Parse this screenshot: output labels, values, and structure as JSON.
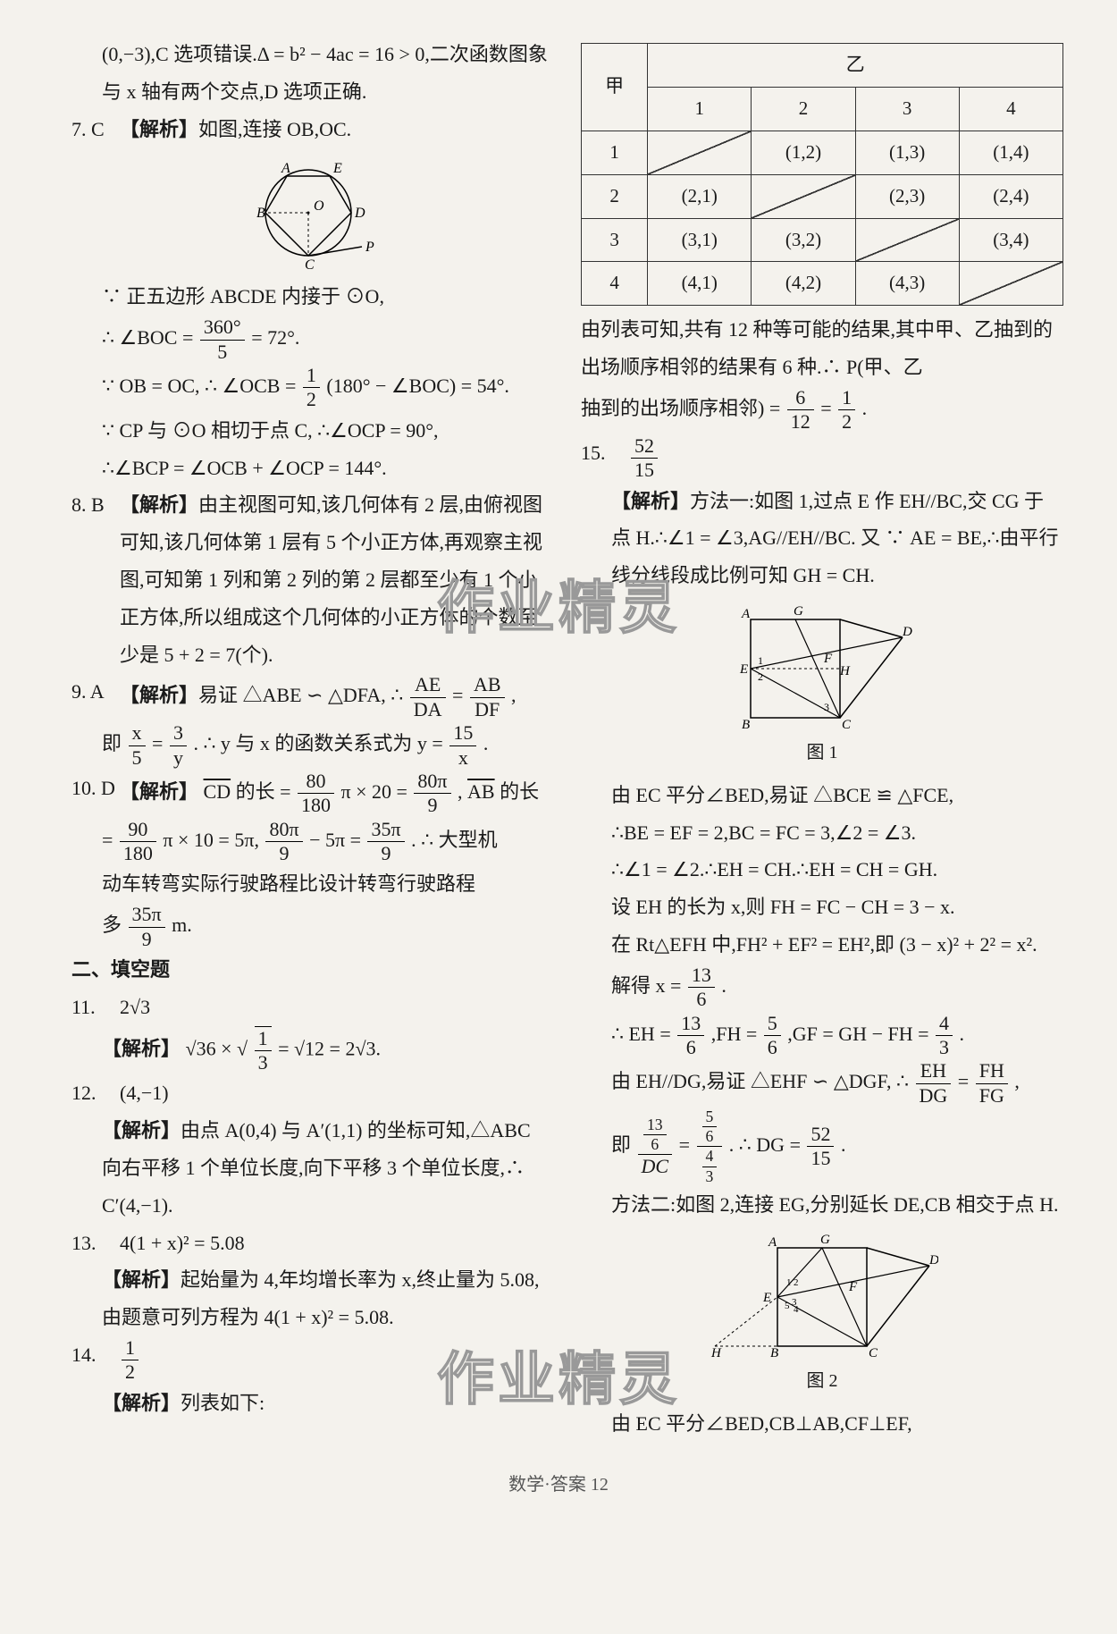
{
  "left": {
    "intro": "(0,−3),C 选项错误.Δ = b² − 4ac = 16 > 0,二次函数图象与 x 轴有两个交点,D 选项正确.",
    "q7_num": "7. C",
    "q7_tag": "【解析】",
    "q7_a": "如图,连接 OB,OC.",
    "q7_b": "∵ 正五边形 ABCDE 内接于 ⊙O,",
    "q7_c_pre": "∴ ∠BOC = ",
    "q7_c_frac_n": "360°",
    "q7_c_frac_d": "5",
    "q7_c_post": " = 72°.",
    "q7_d_pre": "∵ OB = OC, ∴ ∠OCB = ",
    "q7_d_frac_n": "1",
    "q7_d_frac_d": "2",
    "q7_d_post": "(180° − ∠BOC) = 54°.",
    "q7_e": "∵ CP 与 ⊙O 相切于点 C, ∴∠OCP = 90°,",
    "q7_f": "∴∠BCP = ∠OCB + ∠OCP = 144°.",
    "q8_num": "8. B",
    "q8_tag": "【解析】",
    "q8_body": "由主视图可知,该几何体有 2 层,由俯视图可知,该几何体第 1 层有 5 个小正方体,再观察主视图,可知第 1 列和第 2 列的第 2 层都至少有 1 个小正方体,所以组成这个几何体的小正方体的个数至少是 5 + 2 = 7(个).",
    "q9_num": "9. A",
    "q9_tag": "【解析】",
    "q9_a_pre": "易证 △ABE ∽ △DFA, ∴ ",
    "q9_a_f1n": "AE",
    "q9_a_f1d": "DA",
    "q9_a_eq": " = ",
    "q9_a_f2n": "AB",
    "q9_a_f2d": "DF",
    "q9_a_post": ",",
    "q9_b_pre": "即 ",
    "q9_b_f1n": "x",
    "q9_b_f1d": "5",
    "q9_b_eq1": " = ",
    "q9_b_f2n": "3",
    "q9_b_f2d": "y",
    "q9_b_post1": ". ∴ y 与 x 的函数关系式为 y = ",
    "q9_b_f3n": "15",
    "q9_b_f3d": "x",
    "q9_b_post2": ".",
    "q10_num": "10. D",
    "q10_tag": "【解析】",
    "q10_a_pre": "",
    "q10_cd": "CD",
    "q10_a1": " 的长 = ",
    "q10_f1n": "80",
    "q10_f1d": "180",
    "q10_a2": " π × 20 = ",
    "q10_f2n": "80π",
    "q10_f2d": "9",
    "q10_a3": " , ",
    "q10_ab": "AB",
    "q10_a4": " 的长",
    "q10_b1": " = ",
    "q10_f3n": "90",
    "q10_f3d": "180",
    "q10_b2": " π × 10 = 5π, ",
    "q10_f4n": "80π",
    "q10_f4d": "9",
    "q10_b3": " − 5π = ",
    "q10_f5n": "35π",
    "q10_f5d": "9",
    "q10_b4": ". ∴ 大型机",
    "q10_c1": "动车转弯实际行驶路程比设计转弯行驶路程",
    "q10_d_pre": "多 ",
    "q10_f6n": "35π",
    "q10_f6d": "9",
    "q10_d_post": " m.",
    "sec2": "二、填空题",
    "q11_num": "11.",
    "q11_ans": "2√3",
    "q11_tag": "【解析】",
    "q11_body_pre": "√36 × ",
    "q11_rad": "√",
    "q11_f1n": "1",
    "q11_f1d": "3",
    "q11_body_post": " = √12 = 2√3.",
    "q12_num": "12.",
    "q12_ans": "(4,−1)",
    "q12_tag": "【解析】",
    "q12_body": "由点 A(0,4) 与 A′(1,1) 的坐标可知,△ABC 向右平移 1 个单位长度,向下平移 3 个单位长度,∴ C′(4,−1).",
    "q13_num": "13.",
    "q13_ans": "4(1 + x)² = 5.08",
    "q13_tag": "【解析】",
    "q13_body": "起始量为 4,年均增长率为 x,终止量为 5.08,由题意可列方程为 4(1 + x)² = 5.08.",
    "q14_num": "14.",
    "q14_f_n": "1",
    "q14_f_d": "2",
    "q14_tag": "【解析】",
    "q14_body": "列表如下:"
  },
  "right": {
    "table": {
      "header_top": "乙",
      "header_side": "甲",
      "cols": [
        "1",
        "2",
        "3",
        "4"
      ],
      "rows": [
        "1",
        "2",
        "3",
        "4"
      ],
      "cells": [
        [
          "",
          "(1,2)",
          "(1,3)",
          "(1,4)"
        ],
        [
          "(2,1)",
          "",
          "(2,3)",
          "(2,4)"
        ],
        [
          "(3,1)",
          "(3,2)",
          "",
          "(3,4)"
        ],
        [
          "(4,1)",
          "(4,2)",
          "(4,3)",
          ""
        ]
      ]
    },
    "t_after1": "由列表可知,共有 12 种等可能的结果,其中甲、乙抽到的出场顺序相邻的结果有 6 种.∴ P(甲、乙",
    "t_after2_pre": "抽到的出场顺序相邻) = ",
    "t_f1n": "6",
    "t_f1d": "12",
    "t_eq": " = ",
    "t_f2n": "1",
    "t_f2d": "2",
    "t_post": ".",
    "q15_num": "15.",
    "q15_fn": "52",
    "q15_fd": "15",
    "q15_tag": "【解析】",
    "q15_a": "方法一:如图 1,过点 E 作 EH//BC,交 CG 于点 H.∴∠1 = ∠3,AG//EH//BC. 又 ∵ AE = BE,∴由平行线分线段成比例可知 GH = CH.",
    "fig1_cap": "图 1",
    "q15_b": "由 EC 平分∠BED,易证 △BCE ≌ △FCE,",
    "q15_c": "∴BE = EF = 2,BC = FC = 3,∠2 = ∠3.",
    "q15_d": "∴∠1 = ∠2.∴EH = CH.∴EH = CH = GH.",
    "q15_e": "设 EH 的长为 x,则 FH = FC − CH = 3 − x.",
    "q15_f": "在 Rt△EFH 中,FH² + EF² = EH²,即 (3 − x)² + 2² = x².",
    "q15_g_pre": "解得 x = ",
    "q15_g_fn": "13",
    "q15_g_fd": "6",
    "q15_g_post": ".",
    "q15_h_pre": "∴ EH = ",
    "q15_h_f1n": "13",
    "q15_h_f1d": "6",
    "q15_h_mid1": ",FH = ",
    "q15_h_f2n": "5",
    "q15_h_f2d": "6",
    "q15_h_mid2": ",GF = GH − FH = ",
    "q15_h_f3n": "4",
    "q15_h_f3d": "3",
    "q15_h_post": ".",
    "q15_i_pre": "由 EH//DG,易证 △EHF ∽ △DGF, ∴ ",
    "q15_i_f1n": "EH",
    "q15_i_f1d": "DG",
    "q15_i_eq": " = ",
    "q15_i_f2n": "FH",
    "q15_i_f2d": "FG",
    "q15_i_post": ",",
    "q15_j_pre": "即 ",
    "q15_j_post": ".",
    "q15_j_bigfrac_eq": " = ",
    "q15_j_concl_pre": ". ∴ DG = ",
    "q15_j_f3n": "52",
    "q15_j_f3d": "15",
    "q15_j_concl_post": ".",
    "q15_k": "方法二:如图 2,连接 EG,分别延长 DE,CB 相交于点 H.",
    "fig2_cap": "图 2",
    "q15_l": "由 EC 平分∠BED,CB⊥AB,CF⊥EF,"
  },
  "footer": "数学·答案  12",
  "watermark": "作业精灵"
}
